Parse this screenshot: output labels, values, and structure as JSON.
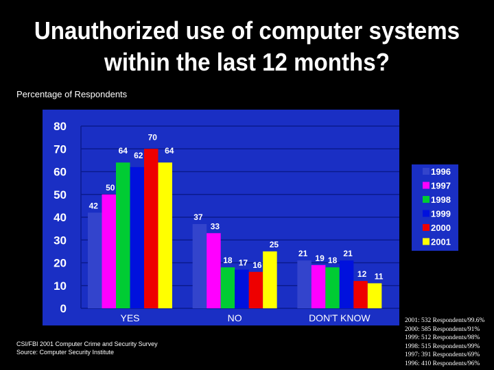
{
  "slide": {
    "title_line1": "Unauthorized use of computer systems",
    "title_line2": "within the last 12 months?",
    "subtitle": "Percentage of Respondents",
    "source_line1": "CSI/FBI 2001 Computer Crime and Security Survey",
    "source_line2": "Source:  Computer Security  Institute",
    "respondents": [
      "2001: 532 Respondents/99.6%",
      "2000: 585 Respondents/91%",
      "1999: 512 Respondents/98%",
      "1998: 515 Respondents/99%",
      "1997: 391 Respondents/69%",
      "1996: 410 Respondents/96%"
    ]
  },
  "colors": {
    "plot_background": "#1a2fc4",
    "gridline": "#0b1a8c",
    "axis_text": "#ffffff",
    "label_text": "#ffffff"
  },
  "chart_data": {
    "type": "bar",
    "categories": [
      "YES",
      "NO",
      "DON'T KNOW"
    ],
    "series": [
      {
        "name": "1996",
        "color": "#3344cc",
        "values": [
          42,
          37,
          21
        ]
      },
      {
        "name": "1997",
        "color": "#ff00ff",
        "values": [
          50,
          33,
          19
        ]
      },
      {
        "name": "1998",
        "color": "#00cc33",
        "values": [
          64,
          18,
          18
        ]
      },
      {
        "name": "1999",
        "color": "#0011dd",
        "values": [
          62,
          17,
          21
        ]
      },
      {
        "name": "2000",
        "color": "#ee0000",
        "values": [
          70,
          16,
          12
        ]
      },
      {
        "name": "2001",
        "color": "#ffff00",
        "values": [
          64,
          25,
          11
        ]
      }
    ],
    "yticks": [
      0,
      10,
      20,
      30,
      40,
      50,
      60,
      70,
      80
    ],
    "ylim": [
      0,
      80
    ],
    "grid": true,
    "legend_position": "right"
  }
}
